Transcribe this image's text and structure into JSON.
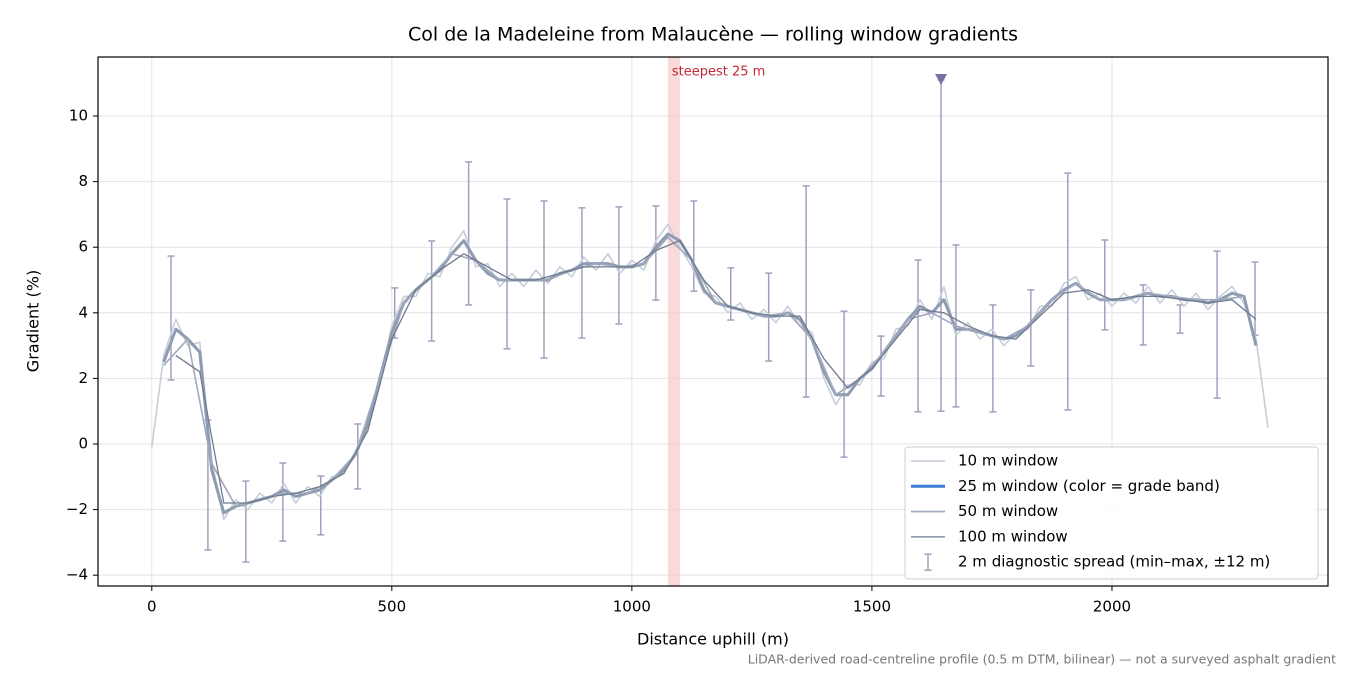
{
  "chart_data": {
    "type": "line",
    "title": "Col de la Madeleine from Malaucène — rolling window gradients",
    "x_label": "Distance uphill (m)",
    "y_label": "Gradient (%)",
    "footnote": "LiDAR-derived road-centreline profile (0.5 m DTM, bilinear) — not a surveyed asphalt gradient",
    "xlim": [
      -112,
      2450
    ],
    "ylim": [
      -4.33,
      11.8
    ],
    "xticks": [
      0,
      500,
      1000,
      1500,
      2000
    ],
    "yticks": [
      {
        "value": -4,
        "label": "−4"
      },
      {
        "value": -2,
        "label": "−2"
      },
      0,
      2,
      4,
      6,
      8,
      10
    ],
    "grid": true,
    "legend_loc": "lower right",
    "highlight": {
      "label": "steepest 25 m",
      "x": [
        1075,
        1100
      ],
      "color": "#f6c9c9",
      "label_color": "#c0283a"
    },
    "series": [
      {
        "name": "10 m window",
        "color": "#c6ceda",
        "width": 1.6,
        "x": [
          0,
          25,
          50,
          75,
          100,
          125,
          150,
          175,
          200,
          225,
          250,
          275,
          300,
          325,
          350,
          375,
          400,
          425,
          450,
          475,
          500,
          525,
          550,
          575,
          600,
          625,
          650,
          675,
          700,
          725,
          750,
          775,
          800,
          825,
          850,
          875,
          900,
          925,
          950,
          975,
          1000,
          1025,
          1050,
          1075,
          1100,
          1125,
          1150,
          1175,
          1200,
          1225,
          1250,
          1275,
          1300,
          1325,
          1350,
          1375,
          1400,
          1425,
          1450,
          1475,
          1500,
          1525,
          1550,
          1575,
          1600,
          1625,
          1650,
          1675,
          1700,
          1725,
          1750,
          1775,
          1800,
          1825,
          1850,
          1875,
          1900,
          1925,
          1950,
          1975,
          2000,
          2025,
          2050,
          2075,
          2100,
          2125,
          2150,
          2175,
          2200,
          2225,
          2250,
          2275,
          2300,
          2325
        ],
        "values": [
          -0.1,
          2.7,
          3.8,
          3.0,
          3.1,
          -0.5,
          -2.3,
          -1.7,
          -2.0,
          -1.5,
          -1.8,
          -1.2,
          -1.8,
          -1.3,
          -1.6,
          -1.0,
          -0.9,
          -0.2,
          0.8,
          1.8,
          3.6,
          4.5,
          4.5,
          5.2,
          5.1,
          6.0,
          6.5,
          5.4,
          5.5,
          4.8,
          5.2,
          4.8,
          5.3,
          4.9,
          5.4,
          5.1,
          5.7,
          5.3,
          5.8,
          5.2,
          5.6,
          5.3,
          6.2,
          6.7,
          6.0,
          5.4,
          4.6,
          4.5,
          4.0,
          4.3,
          3.8,
          4.1,
          3.7,
          4.2,
          3.6,
          3.4,
          2.0,
          1.2,
          1.8,
          1.8,
          2.5,
          2.6,
          3.5,
          3.6,
          4.4,
          3.8,
          4.8,
          3.3,
          3.7,
          3.2,
          3.5,
          3.0,
          3.4,
          3.5,
          4.2,
          4.2,
          4.9,
          5.1,
          4.4,
          4.6,
          4.2,
          4.6,
          4.3,
          4.8,
          4.3,
          4.7,
          4.2,
          4.6,
          4.1,
          4.5,
          4.8,
          4.3,
          3.2,
          0.5
        ]
      },
      {
        "name": "25 m window (color = grade band)",
        "color": "#8e9cb1",
        "legend_color": "#3a7bd5",
        "width": 3,
        "x": [
          25,
          50,
          75,
          100,
          125,
          150,
          175,
          200,
          225,
          250,
          275,
          300,
          325,
          350,
          375,
          400,
          425,
          450,
          475,
          500,
          525,
          550,
          575,
          600,
          625,
          650,
          675,
          700,
          725,
          750,
          775,
          800,
          825,
          850,
          875,
          900,
          925,
          950,
          975,
          1000,
          1025,
          1050,
          1075,
          1100,
          1125,
          1150,
          1175,
          1200,
          1225,
          1250,
          1275,
          1300,
          1325,
          1350,
          1375,
          1400,
          1425,
          1450,
          1475,
          1500,
          1525,
          1550,
          1575,
          1600,
          1625,
          1650,
          1675,
          1700,
          1725,
          1750,
          1775,
          1800,
          1825,
          1850,
          1875,
          1900,
          1925,
          1950,
          1975,
          2000,
          2025,
          2050,
          2075,
          2100,
          2125,
          2150,
          2175,
          2200,
          2225,
          2250,
          2275,
          2300
        ],
        "values": [
          2.5,
          3.5,
          3.2,
          2.8,
          -0.8,
          -2.1,
          -1.9,
          -1.8,
          -1.7,
          -1.6,
          -1.4,
          -1.6,
          -1.5,
          -1.4,
          -1.1,
          -0.8,
          -0.3,
          0.6,
          2.0,
          3.4,
          4.3,
          4.7,
          5.0,
          5.3,
          5.8,
          6.2,
          5.6,
          5.2,
          5.0,
          5.0,
          5.0,
          5.0,
          5.0,
          5.2,
          5.3,
          5.5,
          5.5,
          5.5,
          5.4,
          5.4,
          5.5,
          6.0,
          6.4,
          6.2,
          5.6,
          4.7,
          4.3,
          4.2,
          4.1,
          4.0,
          3.9,
          3.9,
          4.0,
          3.8,
          3.2,
          2.2,
          1.5,
          1.5,
          2.0,
          2.3,
          2.8,
          3.3,
          3.8,
          4.2,
          4.0,
          4.4,
          3.5,
          3.5,
          3.4,
          3.3,
          3.2,
          3.3,
          3.6,
          4.0,
          4.4,
          4.7,
          4.9,
          4.6,
          4.4,
          4.4,
          4.4,
          4.5,
          4.6,
          4.5,
          4.5,
          4.4,
          4.4,
          4.3,
          4.4,
          4.6,
          4.5,
          3.0
        ]
      },
      {
        "name": "50 m window",
        "color": "#a1a9be",
        "width": 1.6,
        "x": [
          25,
          75,
          125,
          175,
          225,
          275,
          325,
          375,
          425,
          475,
          525,
          575,
          625,
          675,
          725,
          775,
          825,
          875,
          925,
          975,
          1025,
          1075,
          1125,
          1175,
          1225,
          1275,
          1325,
          1375,
          1425,
          1475,
          1525,
          1575,
          1625,
          1675,
          1725,
          1775,
          1825,
          1875,
          1925,
          1975,
          2025,
          2075,
          2125,
          2175,
          2225,
          2275
        ],
        "values": [
          2.4,
          3.2,
          -0.6,
          -1.9,
          -1.7,
          -1.5,
          -1.5,
          -1.1,
          -0.3,
          2.0,
          4.3,
          5.0,
          5.8,
          5.6,
          5.0,
          5.0,
          5.0,
          5.3,
          5.5,
          5.4,
          5.5,
          6.3,
          5.6,
          4.3,
          4.1,
          3.9,
          4.0,
          3.2,
          1.5,
          2.0,
          2.8,
          3.8,
          4.0,
          3.6,
          3.4,
          3.2,
          3.6,
          4.4,
          4.9,
          4.4,
          4.4,
          4.6,
          4.5,
          4.4,
          4.4,
          4.5
        ]
      },
      {
        "name": "100 m window",
        "color": "#6f7b8f",
        "width": 1.3,
        "x": [
          50,
          100,
          150,
          200,
          250,
          300,
          350,
          400,
          450,
          500,
          550,
          600,
          650,
          700,
          750,
          800,
          850,
          900,
          950,
          1000,
          1050,
          1100,
          1150,
          1200,
          1250,
          1300,
          1350,
          1400,
          1450,
          1500,
          1550,
          1600,
          1650,
          1700,
          1750,
          1800,
          1850,
          1900,
          1950,
          2000,
          2050,
          2100,
          2150,
          2200,
          2250,
          2300
        ],
        "values": [
          2.7,
          2.2,
          -1.8,
          -1.8,
          -1.6,
          -1.5,
          -1.3,
          -0.9,
          0.4,
          3.2,
          4.7,
          5.3,
          5.8,
          5.4,
          5.0,
          5.0,
          5.2,
          5.4,
          5.4,
          5.4,
          5.9,
          6.2,
          5.0,
          4.2,
          4.0,
          3.9,
          3.9,
          2.6,
          1.7,
          2.3,
          3.2,
          4.1,
          4.0,
          3.6,
          3.3,
          3.2,
          3.9,
          4.6,
          4.7,
          4.4,
          4.5,
          4.5,
          4.4,
          4.3,
          4.4,
          3.8
        ]
      }
    ],
    "errorbars": {
      "name": "2 m diagnostic spread (min–max, ±12 m)",
      "color": "#a39fbf",
      "x": [
        40,
        117,
        196,
        273,
        352,
        429,
        506,
        583,
        660,
        740,
        817,
        896,
        973,
        1050,
        1129,
        1206,
        1285,
        1363,
        1442,
        1519,
        1596,
        1644,
        1675,
        1752,
        1831,
        1908,
        1985,
        2065,
        2142,
        2219,
        2298
      ],
      "min": [
        1.95,
        -3.23,
        -3.6,
        -2.96,
        -2.77,
        -1.37,
        3.23,
        3.14,
        4.24,
        2.9,
        2.62,
        3.23,
        3.66,
        4.39,
        4.66,
        3.78,
        2.53,
        1.43,
        -0.4,
        1.46,
        0.98,
        1.0,
        1.13,
        0.98,
        2.38,
        1.04,
        3.48,
        3.02,
        3.38,
        1.4,
        3.32
      ],
      "max": [
        5.73,
        0.73,
        -1.13,
        -0.58,
        -0.98,
        0.61,
        4.76,
        6.19,
        8.6,
        7.47,
        7.41,
        7.2,
        7.23,
        7.26,
        7.41,
        5.37,
        5.21,
        7.87,
        4.05,
        3.29,
        5.61,
        11.1,
        6.07,
        4.24,
        4.7,
        8.26,
        6.22,
        4.85,
        4.24,
        5.88,
        5.55
      ]
    },
    "outlier_marker": {
      "x": 1644,
      "y": 11.1,
      "color": "#7b6fa3"
    }
  }
}
